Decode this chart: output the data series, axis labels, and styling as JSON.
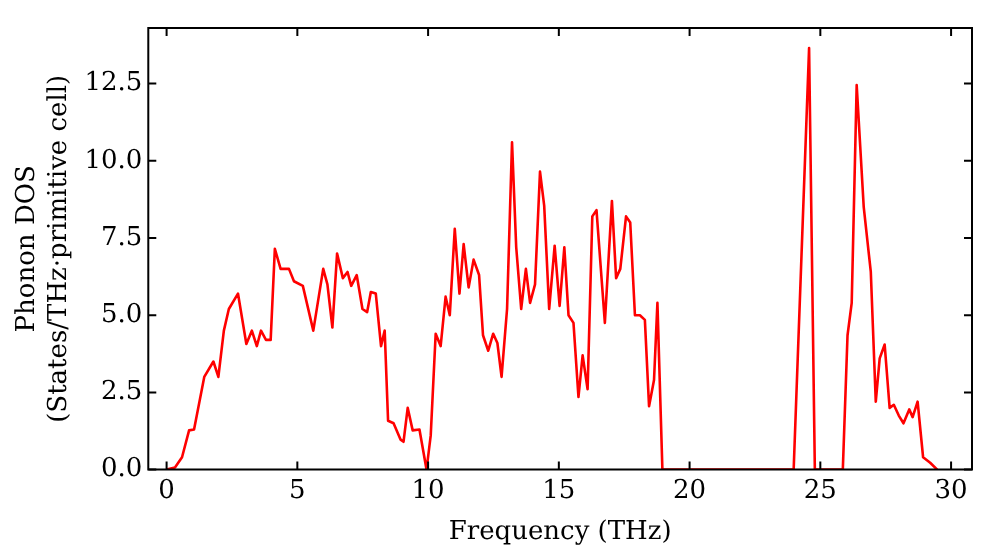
{
  "chart_data": {
    "type": "line",
    "xlabel": "Frequency (THz)",
    "ylabel": "Phonon DOS\n(States/THz·primitive cell)",
    "xlim": [
      -0.7,
      30.8
    ],
    "ylim": [
      0,
      14.3
    ],
    "xticks": [
      0,
      5,
      10,
      15,
      20,
      25,
      30
    ],
    "yticks": [
      {
        "value": 0,
        "label": "0.0"
      },
      {
        "value": 2.5,
        "label": "2.5"
      },
      {
        "value": 5,
        "label": "5.0"
      },
      {
        "value": 7.5,
        "label": "7.5"
      },
      {
        "value": 10,
        "label": "10.0"
      },
      {
        "value": 12.5,
        "label": "12.5"
      }
    ],
    "grid": false,
    "legend": false,
    "marker": "none",
    "line_style": "solid",
    "series": [
      {
        "color": "#ff0000",
        "x": [
          0,
          0.32,
          0.59,
          0.86,
          1.05,
          1.44,
          1.79,
          1.98,
          2.19,
          2.38,
          2.73,
          3.05,
          3.26,
          3.45,
          3.61,
          3.8,
          3.98,
          4.14,
          4.36,
          4.68,
          4.87,
          5.21,
          5.61,
          5.99,
          6.15,
          6.34,
          6.52,
          6.74,
          6.92,
          7.06,
          7.27,
          7.49,
          7.67,
          7.81,
          8.0,
          8.2,
          8.34,
          8.47,
          8.68,
          8.95,
          9.06,
          9.22,
          9.41,
          9.67,
          9.94,
          10.1,
          10.29,
          10.48,
          10.67,
          10.83,
          11.02,
          11.2,
          11.36,
          11.55,
          11.74,
          11.95,
          12.1,
          12.3,
          12.49,
          12.65,
          12.81,
          13.02,
          13.21,
          13.37,
          13.56,
          13.74,
          13.9,
          14.09,
          14.28,
          14.44,
          14.63,
          14.84,
          15.03,
          15.21,
          15.37,
          15.56,
          15.75,
          15.91,
          16.1,
          16.28,
          16.44,
          16.76,
          17.03,
          17.19,
          17.35,
          17.57,
          17.73,
          17.91,
          18.1,
          18.29,
          18.45,
          18.64,
          18.77,
          18.96,
          23.98,
          24.57,
          24.79,
          25.86,
          26.04,
          26.2,
          26.39,
          26.66,
          26.93,
          27.12,
          27.27,
          27.46,
          27.65,
          27.81,
          28.0,
          28.18,
          28.4,
          28.53,
          28.72,
          28.93,
          29.2,
          29.47
        ],
        "values": [
          0,
          0.07,
          0.4,
          1.27,
          1.3,
          3.0,
          3.5,
          3.0,
          4.5,
          5.2,
          5.7,
          4.07,
          4.5,
          4.0,
          4.5,
          4.2,
          4.2,
          7.15,
          6.5,
          6.5,
          6.1,
          5.95,
          4.5,
          6.5,
          6.0,
          4.6,
          7.0,
          6.2,
          6.4,
          5.95,
          6.3,
          5.2,
          5.1,
          5.75,
          5.7,
          4.0,
          4.5,
          1.58,
          1.5,
          0.97,
          0.9,
          2.0,
          1.27,
          1.3,
          0,
          1.1,
          4.4,
          4.0,
          5.6,
          5.0,
          7.8,
          5.7,
          7.3,
          5.9,
          6.8,
          6.3,
          4.35,
          3.85,
          4.4,
          4.1,
          3.0,
          5.2,
          10.6,
          7.2,
          5.2,
          6.5,
          5.4,
          6.0,
          9.65,
          8.55,
          5.2,
          7.25,
          5.3,
          7.2,
          5.0,
          4.75,
          2.35,
          3.7,
          2.6,
          8.2,
          8.4,
          4.75,
          8.7,
          6.2,
          6.5,
          8.2,
          8.0,
          5.0,
          5.0,
          4.85,
          2.05,
          2.9,
          5.4,
          0,
          0,
          13.65,
          0,
          0,
          4.35,
          5.4,
          12.45,
          8.5,
          6.4,
          2.2,
          3.6,
          4.05,
          2.0,
          2.1,
          1.75,
          1.5,
          1.95,
          1.7,
          2.2,
          0.4,
          0.22,
          0
        ]
      }
    ]
  }
}
